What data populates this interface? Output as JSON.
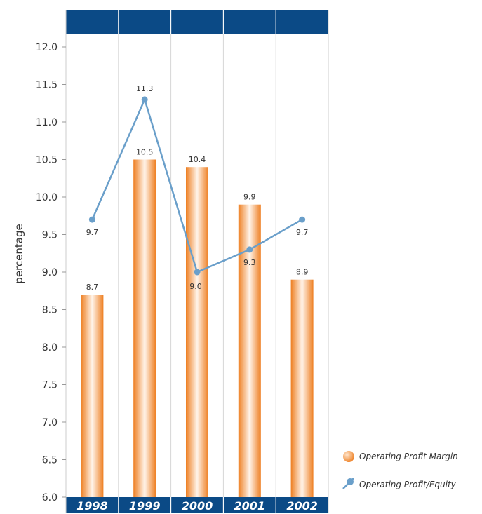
{
  "chart_data": {
    "type": "bar",
    "categories": [
      "1998",
      "1999",
      "2000",
      "2001",
      "2002"
    ],
    "series": [
      {
        "name": "Operating Profit Margin",
        "type": "bar",
        "values": [
          8.7,
          10.5,
          10.4,
          9.9,
          8.9
        ],
        "labels": [
          "8.7",
          "10.5",
          "10.4",
          "9.9",
          "8.9"
        ]
      },
      {
        "name": "Operating Profit/Equity",
        "type": "line",
        "values": [
          9.7,
          11.3,
          9.0,
          9.3,
          9.7
        ],
        "labels": [
          "9.7",
          "11.3",
          "9.0",
          "9.3",
          "9.7"
        ]
      }
    ],
    "ylabel": "percentage",
    "ylim": [
      6.0,
      12.0
    ],
    "yticks": [
      "6.0",
      "6.5",
      "7.0",
      "7.5",
      "8.0",
      "8.5",
      "9.0",
      "9.5",
      "10.0",
      "10.5",
      "11.0",
      "11.5",
      "12.0"
    ],
    "grid": "vertical",
    "legend": "bottom-right",
    "colors": {
      "header": "#0b4a86",
      "bar": "#f0892f",
      "line": "#6a9fca",
      "grid": "#cccccc"
    }
  }
}
